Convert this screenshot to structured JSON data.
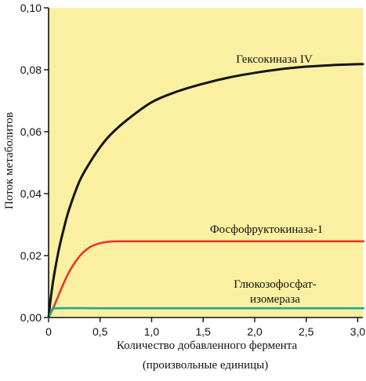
{
  "chart_data": {
    "type": "line",
    "xlabel": [
      "Количество добавленного фермента",
      "(произвольные единицы)"
    ],
    "ylabel": "Поток метаболитов",
    "xlim": [
      0,
      3.05
    ],
    "ylim": [
      0,
      0.1
    ],
    "x_ticks": [
      "0",
      "0,5",
      "1,0",
      "1,5",
      "2,0",
      "2,5",
      "3,0"
    ],
    "x_tick_values": [
      0,
      0.5,
      1.0,
      1.5,
      2.0,
      2.5,
      3.0
    ],
    "y_ticks": [
      "0,00",
      "0,02",
      "0,04",
      "0,06",
      "0,08",
      "0,10"
    ],
    "y_tick_values": [
      0,
      0.02,
      0.04,
      0.06,
      0.08,
      0.1
    ],
    "background_color": "#fbf0a1",
    "series": [
      {
        "name": "Гексокиназа IV",
        "color": "#141414",
        "x": [
          0,
          0.02,
          0.05,
          0.1,
          0.15,
          0.2,
          0.3,
          0.4,
          0.5,
          0.6,
          0.75,
          1.0,
          1.25,
          1.5,
          1.75,
          2.0,
          2.25,
          2.5,
          2.75,
          3.0,
          3.05
        ],
        "y": [
          0,
          0.006,
          0.013,
          0.022,
          0.029,
          0.035,
          0.044,
          0.05,
          0.055,
          0.059,
          0.0635,
          0.0695,
          0.073,
          0.0755,
          0.0775,
          0.079,
          0.0802,
          0.081,
          0.0815,
          0.0818,
          0.0818
        ]
      },
      {
        "name": "Фосфофруктокиназа-1",
        "color": "#e8362d",
        "x": [
          0,
          0.03,
          0.07,
          0.12,
          0.18,
          0.25,
          0.32,
          0.4,
          0.5,
          0.6,
          0.7,
          1.0,
          1.5,
          2.0,
          2.5,
          3.0,
          3.05
        ],
        "y": [
          0,
          0.002,
          0.005,
          0.009,
          0.0135,
          0.0175,
          0.0205,
          0.0227,
          0.024,
          0.0245,
          0.0246,
          0.0246,
          0.0246,
          0.0246,
          0.0246,
          0.0246,
          0.0246
        ]
      },
      {
        "name": "Глюкозофосфат-изомераза",
        "label_lines": [
          "Глюкозофосфат-",
          "изомераза"
        ],
        "color": "#1fa88a",
        "x": [
          0,
          0.02,
          0.04,
          0.08,
          0.5,
          1.0,
          1.5,
          2.0,
          2.5,
          3.0,
          3.05
        ],
        "y": [
          0,
          0.0015,
          0.0025,
          0.003,
          0.003,
          0.003,
          0.003,
          0.003,
          0.003,
          0.003,
          0.003
        ]
      }
    ]
  }
}
